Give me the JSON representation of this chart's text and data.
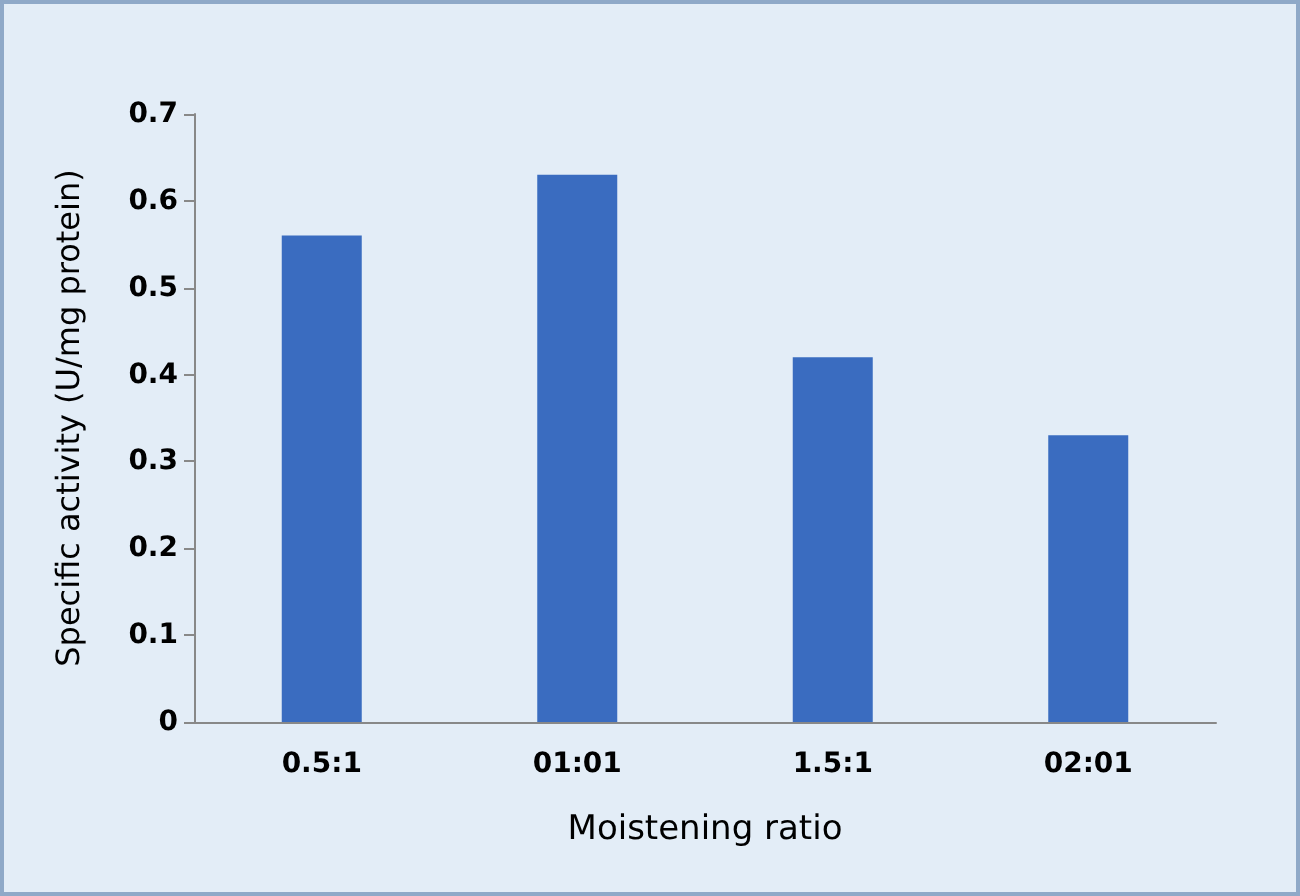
{
  "chart_data": {
    "type": "bar",
    "xlabel": "Moistening ratio",
    "ylabel": "Specific activity (U/mg protein)",
    "categories": [
      "0.5:1",
      "01:01",
      "1.5:1",
      "02:01"
    ],
    "values": [
      0.56,
      0.63,
      0.42,
      0.33
    ],
    "color": "#3a6cc0",
    "ylim": [
      0,
      0.7
    ],
    "yticks": [
      0,
      0.1,
      0.2,
      0.3,
      0.4,
      0.5,
      0.6,
      0.7
    ],
    "grid": false
  }
}
